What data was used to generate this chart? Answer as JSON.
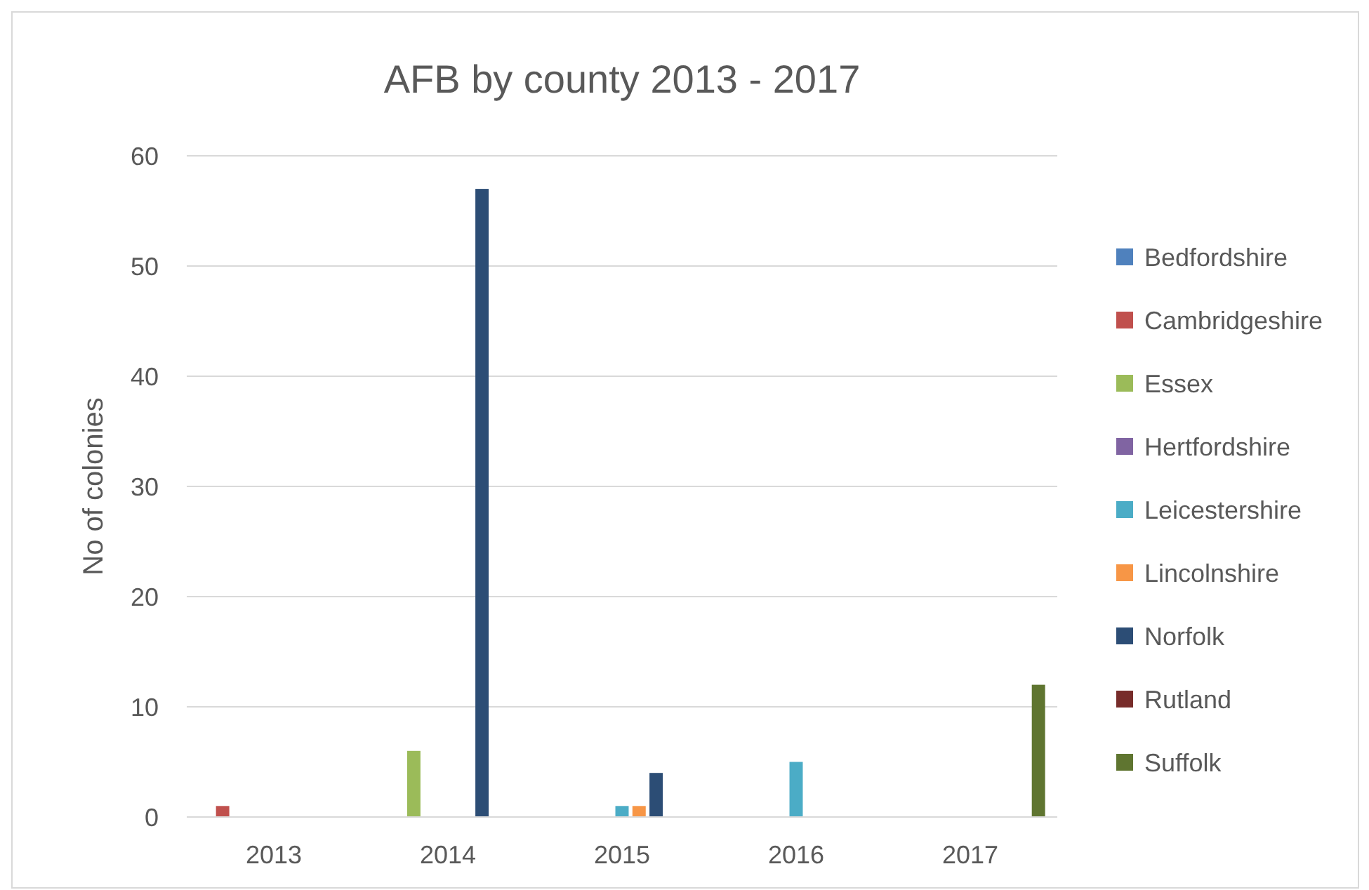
{
  "chart_data": {
    "type": "bar",
    "title": "AFB by county 2013 - 2017",
    "ylabel": "No of colonies",
    "categories": [
      "2013",
      "2014",
      "2015",
      "2016",
      "2017"
    ],
    "series": [
      {
        "name": "Bedfordshire",
        "color": "#4f81bd",
        "values": [
          0,
          0,
          0,
          0,
          0
        ]
      },
      {
        "name": "Cambridgeshire",
        "color": "#c0504d",
        "values": [
          1,
          0,
          0,
          0,
          0
        ]
      },
      {
        "name": "Essex",
        "color": "#9bbb59",
        "values": [
          0,
          6,
          0,
          0,
          0
        ]
      },
      {
        "name": "Hertfordshire",
        "color": "#8064a2",
        "values": [
          0,
          0,
          0,
          0,
          0
        ]
      },
      {
        "name": "Leicestershire",
        "color": "#4bacc6",
        "values": [
          0,
          0,
          1,
          5,
          0
        ]
      },
      {
        "name": "Lincolnshire",
        "color": "#f79646",
        "values": [
          0,
          0,
          1,
          0,
          0
        ]
      },
      {
        "name": "Norfolk",
        "color": "#2c4d75",
        "values": [
          0,
          57,
          4,
          0,
          0
        ]
      },
      {
        "name": "Rutland",
        "color": "#772c2a",
        "values": [
          0,
          0,
          0,
          0,
          0
        ]
      },
      {
        "name": "Suffolk",
        "color": "#5f7530",
        "values": [
          0,
          0,
          0,
          0,
          12
        ]
      }
    ],
    "ylim": [
      0,
      60
    ],
    "yticks": [
      0,
      10,
      20,
      30,
      40,
      50,
      60
    ],
    "grid": "y",
    "legend": "right"
  }
}
